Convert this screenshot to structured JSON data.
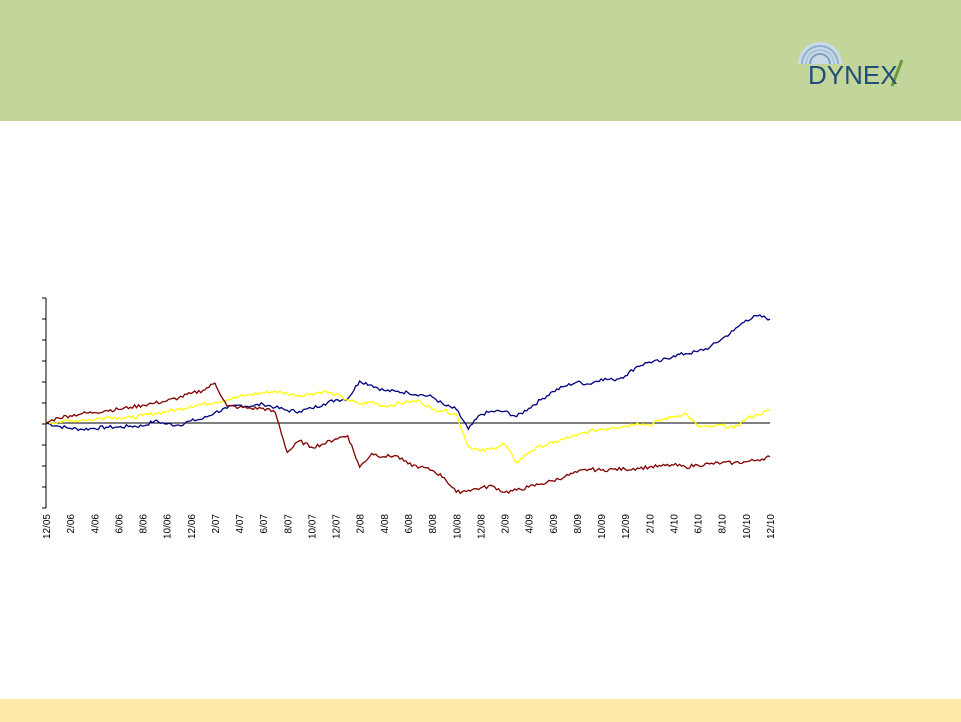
{
  "colors": {
    "header_bg": "#c2d69b",
    "footer_bg": "#fde9a9",
    "logo_text": "#1f4e79",
    "series_navy": "#000080",
    "series_yellow": "#ffff00",
    "series_maroon": "#800000"
  },
  "logo": {
    "text": "DYNEX"
  },
  "chart_data": {
    "type": "line",
    "title": "",
    "xlabel": "",
    "ylabel": "",
    "grid": false,
    "legend": "none",
    "y_tick_labels": "not shown",
    "ylim": [
      -1,
      1
    ],
    "x_tick_labels": [
      "12/05",
      "2/06",
      "4/06",
      "6/06",
      "8/06",
      "10/06",
      "12/06",
      "2/07",
      "4/07",
      "6/07",
      "8/07",
      "10/07",
      "12/07",
      "2/08",
      "4/08",
      "6/08",
      "8/08",
      "10/08",
      "12/08",
      "2/09",
      "4/09",
      "6/09",
      "8/09",
      "10/09",
      "12/09",
      "2/10",
      "4/10",
      "6/10",
      "8/10",
      "10/10",
      "12/10"
    ],
    "x": [
      "12/05",
      "1/06",
      "2/06",
      "3/06",
      "4/06",
      "5/06",
      "6/06",
      "7/06",
      "8/06",
      "9/06",
      "10/06",
      "11/06",
      "12/06",
      "1/07",
      "2/07",
      "3/07",
      "4/07",
      "5/07",
      "6/07",
      "7/07",
      "8/07",
      "9/07",
      "10/07",
      "11/07",
      "12/07",
      "1/08",
      "2/08",
      "3/08",
      "4/08",
      "5/08",
      "6/08",
      "7/08",
      "8/08",
      "9/08",
      "10/08",
      "11/08",
      "12/08",
      "1/09",
      "2/09",
      "3/09",
      "4/09",
      "5/09",
      "6/09",
      "7/09",
      "8/09",
      "9/09",
      "10/09",
      "11/09",
      "12/09",
      "1/10",
      "2/10",
      "3/10",
      "4/10",
      "5/10",
      "6/10",
      "7/10",
      "8/10",
      "9/10",
      "10/10",
      "11/10",
      "12/10"
    ],
    "series": [
      {
        "color": "#000080",
        "values": [
          0.0,
          -0.03,
          -0.05,
          -0.06,
          -0.05,
          -0.04,
          -0.04,
          -0.03,
          -0.03,
          0.02,
          -0.01,
          -0.02,
          0.02,
          0.04,
          0.1,
          0.14,
          0.17,
          0.16,
          0.18,
          0.15,
          0.12,
          0.11,
          0.14,
          0.18,
          0.22,
          0.23,
          0.4,
          0.36,
          0.31,
          0.3,
          0.29,
          0.27,
          0.25,
          0.17,
          0.13,
          -0.06,
          0.08,
          0.11,
          0.11,
          0.06,
          0.14,
          0.22,
          0.3,
          0.35,
          0.39,
          0.37,
          0.42,
          0.41,
          0.45,
          0.54,
          0.58,
          0.59,
          0.64,
          0.66,
          0.68,
          0.72,
          0.8,
          0.88,
          0.98,
          1.02,
          0.99
        ]
      },
      {
        "color": "#ffff00",
        "values": [
          0.0,
          0.01,
          0.02,
          0.03,
          0.03,
          0.06,
          0.05,
          0.05,
          0.07,
          0.09,
          0.11,
          0.13,
          0.16,
          0.18,
          0.2,
          0.22,
          0.25,
          0.27,
          0.29,
          0.3,
          0.28,
          0.26,
          0.28,
          0.3,
          0.27,
          0.22,
          0.18,
          0.2,
          0.16,
          0.18,
          0.2,
          0.21,
          0.13,
          0.12,
          0.08,
          -0.22,
          -0.27,
          -0.24,
          -0.2,
          -0.38,
          -0.28,
          -0.22,
          -0.19,
          -0.15,
          -0.12,
          -0.08,
          -0.06,
          -0.04,
          -0.03,
          0.0,
          -0.02,
          0.03,
          0.06,
          0.09,
          -0.03,
          -0.04,
          -0.02,
          -0.05,
          0.04,
          0.08,
          0.12
        ]
      },
      {
        "color": "#800000",
        "values": [
          0.0,
          0.05,
          0.07,
          0.09,
          0.1,
          0.12,
          0.13,
          0.15,
          0.17,
          0.19,
          0.21,
          0.24,
          0.28,
          0.31,
          0.38,
          0.16,
          0.15,
          0.14,
          0.14,
          0.1,
          -0.28,
          -0.17,
          -0.23,
          -0.2,
          -0.15,
          -0.12,
          -0.42,
          -0.29,
          -0.32,
          -0.31,
          -0.39,
          -0.42,
          -0.45,
          -0.52,
          -0.66,
          -0.64,
          -0.62,
          -0.6,
          -0.66,
          -0.64,
          -0.61,
          -0.58,
          -0.55,
          -0.51,
          -0.47,
          -0.44,
          -0.45,
          -0.44,
          -0.44,
          -0.43,
          -0.42,
          -0.41,
          -0.4,
          -0.42,
          -0.4,
          -0.39,
          -0.38,
          -0.38,
          -0.37,
          -0.35,
          -0.32
        ]
      }
    ]
  }
}
